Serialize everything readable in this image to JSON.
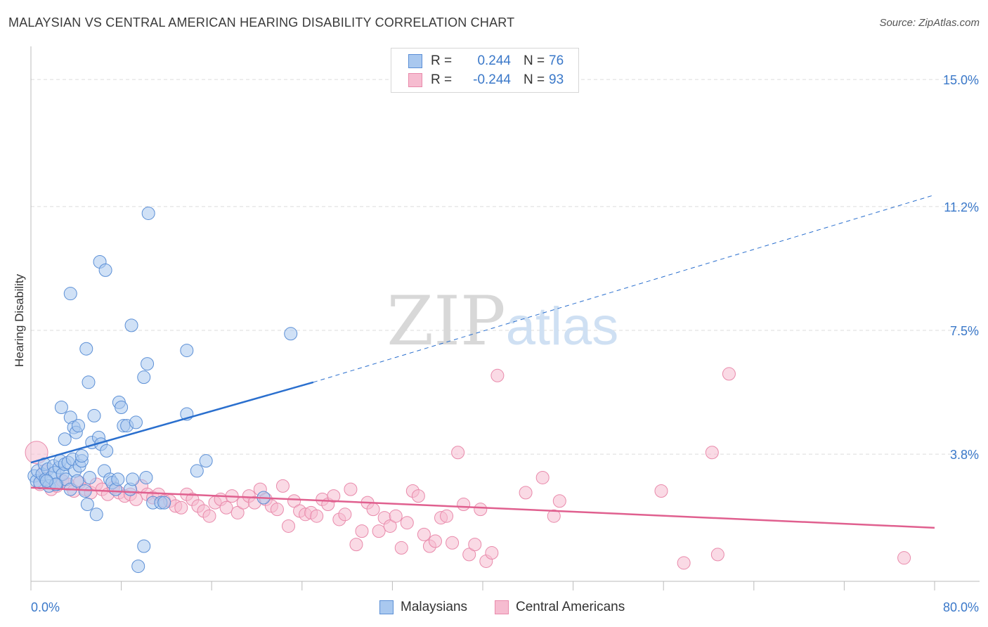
{
  "title": "MALAYSIAN VS CENTRAL AMERICAN HEARING DISABILITY CORRELATION CHART",
  "source": "Source: ZipAtlas.com",
  "watermark": {
    "zip": "ZIP",
    "atlas": "atlas"
  },
  "legend": {
    "series1": {
      "r_label": "R =",
      "r_value": "0.244",
      "n_label": "N =",
      "n_value": "76"
    },
    "series2": {
      "r_label": "R =",
      "r_value": "-0.244",
      "n_label": "N =",
      "n_value": "93"
    }
  },
  "bottom_legend": {
    "series1": "Malaysians",
    "series2": "Central Americans"
  },
  "colors": {
    "blue_fill": "#a9c8ef",
    "blue_stroke": "#5b8fd6",
    "blue_line": "#2a6fce",
    "pink_fill": "#f6bcd0",
    "pink_stroke": "#e98aab",
    "pink_line": "#e0608f",
    "axis_text": "#3a78c9",
    "grid": "#dcdcdc"
  },
  "chart_data": {
    "type": "scatter",
    "title": "MALAYSIAN VS CENTRAL AMERICAN HEARING DISABILITY CORRELATION CHART",
    "xlabel": "",
    "ylabel": "Hearing Disability",
    "xlim": [
      0,
      80
    ],
    "ylim": [
      0,
      15.8
    ],
    "x_tick_labels": [
      "0.0%",
      "80.0%"
    ],
    "y_ticks": [
      3.8,
      7.5,
      11.2,
      15.0
    ],
    "y_tick_labels": [
      "3.8%",
      "7.5%",
      "11.2%",
      "15.0%"
    ],
    "grid": true,
    "legend_position": "top-center",
    "series": [
      {
        "name": "Malaysians",
        "r": 0.244,
        "n": 76,
        "trend": {
          "x": [
            0,
            25,
            80
          ],
          "y": [
            3.55,
            5.95,
            11.55
          ],
          "solid_until": 25
        },
        "points": [
          [
            0.3,
            3.15
          ],
          [
            0.5,
            3.0
          ],
          [
            0.6,
            3.3
          ],
          [
            0.8,
            2.95
          ],
          [
            1.0,
            3.2
          ],
          [
            1.2,
            3.5
          ],
          [
            1.3,
            3.05
          ],
          [
            1.5,
            3.35
          ],
          [
            1.6,
            2.85
          ],
          [
            1.8,
            3.1
          ],
          [
            2.0,
            3.45
          ],
          [
            2.1,
            3.25
          ],
          [
            2.3,
            2.9
          ],
          [
            2.5,
            3.4
          ],
          [
            2.6,
            3.6
          ],
          [
            2.8,
            3.2
          ],
          [
            3.0,
            3.5
          ],
          [
            3.1,
            3.05
          ],
          [
            3.3,
            3.55
          ],
          [
            3.5,
            2.75
          ],
          [
            3.7,
            3.65
          ],
          [
            3.9,
            3.3
          ],
          [
            4.1,
            3.0
          ],
          [
            4.3,
            3.45
          ],
          [
            4.5,
            3.6
          ],
          [
            2.7,
            5.2
          ],
          [
            3.0,
            4.25
          ],
          [
            3.5,
            4.9
          ],
          [
            3.8,
            4.6
          ],
          [
            4.0,
            4.45
          ],
          [
            4.2,
            4.65
          ],
          [
            4.5,
            3.75
          ],
          [
            4.8,
            2.7
          ],
          [
            5.0,
            2.3
          ],
          [
            5.2,
            3.1
          ],
          [
            5.4,
            4.15
          ],
          [
            5.6,
            4.95
          ],
          [
            5.8,
            2.0
          ],
          [
            6.0,
            4.3
          ],
          [
            6.2,
            4.1
          ],
          [
            6.5,
            3.3
          ],
          [
            6.7,
            3.9
          ],
          [
            7.0,
            3.05
          ],
          [
            7.2,
            2.95
          ],
          [
            7.5,
            2.75
          ],
          [
            7.7,
            3.05
          ],
          [
            7.8,
            5.35
          ],
          [
            8.0,
            5.2
          ],
          [
            8.2,
            4.65
          ],
          [
            8.5,
            4.65
          ],
          [
            8.8,
            2.75
          ],
          [
            9.0,
            3.05
          ],
          [
            9.3,
            4.75
          ],
          [
            6.1,
            9.55
          ],
          [
            6.6,
            9.3
          ],
          [
            3.5,
            8.6
          ],
          [
            4.9,
            6.95
          ],
          [
            5.1,
            5.95
          ],
          [
            8.9,
            7.65
          ],
          [
            10.3,
            6.5
          ],
          [
            10.0,
            6.1
          ],
          [
            10.4,
            11.0
          ],
          [
            13.8,
            6.9
          ],
          [
            13.8,
            5.0
          ],
          [
            10.2,
            3.1
          ],
          [
            10.8,
            2.35
          ],
          [
            11.5,
            2.35
          ],
          [
            11.8,
            2.35
          ],
          [
            14.7,
            3.3
          ],
          [
            15.5,
            3.6
          ],
          [
            20.6,
            2.5
          ],
          [
            23.0,
            7.4
          ],
          [
            9.5,
            0.45
          ],
          [
            10.0,
            1.05
          ],
          [
            2.2,
            2.9
          ],
          [
            1.4,
            3.0
          ]
        ]
      },
      {
        "name": "Central Americans",
        "r": -0.244,
        "n": 93,
        "trend": {
          "x": [
            0,
            80
          ],
          "y": [
            2.8,
            1.6
          ]
        },
        "points": [
          [
            0.5,
            3.85
          ],
          [
            0.8,
            2.9
          ],
          [
            1.2,
            3.3
          ],
          [
            1.8,
            2.75
          ],
          [
            2.3,
            2.85
          ],
          [
            2.8,
            3.0
          ],
          [
            3.3,
            2.9
          ],
          [
            3.8,
            2.7
          ],
          [
            4.3,
            2.95
          ],
          [
            4.8,
            2.75
          ],
          [
            5.3,
            2.65
          ],
          [
            5.8,
            2.9
          ],
          [
            6.3,
            2.75
          ],
          [
            6.8,
            2.6
          ],
          [
            7.3,
            2.8
          ],
          [
            7.8,
            2.65
          ],
          [
            8.3,
            2.55
          ],
          [
            8.8,
            2.6
          ],
          [
            9.3,
            2.45
          ],
          [
            9.8,
            2.85
          ],
          [
            10.3,
            2.6
          ],
          [
            10.8,
            2.5
          ],
          [
            11.3,
            2.6
          ],
          [
            11.8,
            2.4
          ],
          [
            12.3,
            2.4
          ],
          [
            12.8,
            2.25
          ],
          [
            13.3,
            2.2
          ],
          [
            13.8,
            2.6
          ],
          [
            14.3,
            2.45
          ],
          [
            14.8,
            2.25
          ],
          [
            15.3,
            2.1
          ],
          [
            15.8,
            1.95
          ],
          [
            16.3,
            2.35
          ],
          [
            16.8,
            2.45
          ],
          [
            17.3,
            2.2
          ],
          [
            17.8,
            2.55
          ],
          [
            18.3,
            2.05
          ],
          [
            18.8,
            2.35
          ],
          [
            19.3,
            2.55
          ],
          [
            19.8,
            2.35
          ],
          [
            20.3,
            2.75
          ],
          [
            20.8,
            2.45
          ],
          [
            21.3,
            2.25
          ],
          [
            21.8,
            2.15
          ],
          [
            22.3,
            2.85
          ],
          [
            22.8,
            1.65
          ],
          [
            23.3,
            2.4
          ],
          [
            23.8,
            2.1
          ],
          [
            24.3,
            2.0
          ],
          [
            24.8,
            2.05
          ],
          [
            25.3,
            1.95
          ],
          [
            25.8,
            2.45
          ],
          [
            26.3,
            2.3
          ],
          [
            26.8,
            2.55
          ],
          [
            27.3,
            1.85
          ],
          [
            27.8,
            2.0
          ],
          [
            28.3,
            2.75
          ],
          [
            28.8,
            1.1
          ],
          [
            29.3,
            1.5
          ],
          [
            29.8,
            2.35
          ],
          [
            30.3,
            2.15
          ],
          [
            30.8,
            1.5
          ],
          [
            31.3,
            1.9
          ],
          [
            31.8,
            1.65
          ],
          [
            32.3,
            1.95
          ],
          [
            32.8,
            1.0
          ],
          [
            33.3,
            1.75
          ],
          [
            33.8,
            2.7
          ],
          [
            34.3,
            2.55
          ],
          [
            34.8,
            1.4
          ],
          [
            35.3,
            1.05
          ],
          [
            35.8,
            1.2
          ],
          [
            36.3,
            1.9
          ],
          [
            36.8,
            1.95
          ],
          [
            37.3,
            1.15
          ],
          [
            37.8,
            3.85
          ],
          [
            38.3,
            2.3
          ],
          [
            38.8,
            0.8
          ],
          [
            39.3,
            1.1
          ],
          [
            39.8,
            2.15
          ],
          [
            40.3,
            0.6
          ],
          [
            40.8,
            0.85
          ],
          [
            41.3,
            6.15
          ],
          [
            43.8,
            2.65
          ],
          [
            45.3,
            3.1
          ],
          [
            46.3,
            1.95
          ],
          [
            46.8,
            2.4
          ],
          [
            55.8,
            2.7
          ],
          [
            57.8,
            0.55
          ],
          [
            60.3,
            3.85
          ],
          [
            60.8,
            0.8
          ],
          [
            61.8,
            6.2
          ],
          [
            77.3,
            0.7
          ]
        ]
      }
    ]
  }
}
